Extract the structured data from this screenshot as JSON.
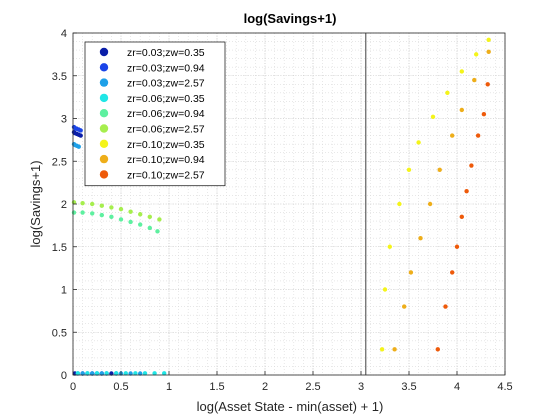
{
  "chart_data": {
    "type": "scatter",
    "title": "log(Savings+1)",
    "xlabel": "log(Asset State - min(asset) + 1)",
    "ylabel": "log(Savings+1)",
    "xlim": [
      0,
      4.5
    ],
    "ylim": [
      0,
      4
    ],
    "xticks": [
      "0",
      "0.5",
      "1",
      "1.5",
      "2",
      "2.5",
      "3",
      "3.5",
      "4",
      "4.5"
    ],
    "yticks": [
      "0",
      "0.5",
      "1",
      "1.5",
      "2",
      "2.5",
      "3",
      "3.5",
      "4"
    ],
    "grid": "minor-dotted",
    "legend_position": "top-left",
    "vertical_line_x": 3.05,
    "series": [
      {
        "name": "zr=0.03;zw=0.35",
        "color": "#0a1ea8",
        "points": [
          [
            0,
            2.84
          ],
          [
            0.02,
            2.83
          ],
          [
            0.04,
            2.82
          ],
          [
            0.06,
            2.81
          ],
          [
            0.08,
            2.8
          ],
          [
            0.02,
            0.01
          ],
          [
            0.1,
            0.01
          ],
          [
            0.2,
            0.01
          ],
          [
            0.3,
            0.01
          ],
          [
            0.4,
            0.01
          ]
        ]
      },
      {
        "name": "zr=0.03;zw=0.94",
        "color": "#1a44e8",
        "points": [
          [
            0,
            2.9
          ],
          [
            0.02,
            2.89
          ],
          [
            0.04,
            2.88
          ],
          [
            0.06,
            2.87
          ],
          [
            0.08,
            2.86
          ],
          [
            0.05,
            0.01
          ],
          [
            0.15,
            0.01
          ],
          [
            0.25,
            0.01
          ],
          [
            0.35,
            0.01
          ],
          [
            0.45,
            0.01
          ]
        ]
      },
      {
        "name": "zr=0.03;zw=2.57",
        "color": "#1ea0e8",
        "points": [
          [
            0,
            2.7
          ],
          [
            0.02,
            2.69
          ],
          [
            0.04,
            2.68
          ],
          [
            0.06,
            2.67
          ],
          [
            0.1,
            0.01
          ],
          [
            0.2,
            0.01
          ],
          [
            0.3,
            0.01
          ],
          [
            0.5,
            0.01
          ],
          [
            0.6,
            0.01
          ],
          [
            0.7,
            0.01
          ]
        ]
      },
      {
        "name": "zr=0.06;zw=0.35",
        "color": "#20e6e6",
        "points": [
          [
            0.05,
            0.02
          ],
          [
            0.15,
            0.02
          ],
          [
            0.25,
            0.02
          ],
          [
            0.35,
            0.02
          ],
          [
            0.45,
            0.02
          ],
          [
            0.55,
            0.02
          ],
          [
            0.65,
            0.02
          ],
          [
            0.75,
            0.02
          ],
          [
            0.85,
            0.02
          ],
          [
            0.95,
            0.02
          ]
        ]
      },
      {
        "name": "zr=0.06;zw=0.94",
        "color": "#5ef0a0",
        "points": [
          [
            0,
            1.9
          ],
          [
            0.1,
            1.9
          ],
          [
            0.2,
            1.89
          ],
          [
            0.3,
            1.87
          ],
          [
            0.4,
            1.85
          ],
          [
            0.5,
            1.82
          ],
          [
            0.6,
            1.79
          ],
          [
            0.7,
            1.76
          ],
          [
            0.8,
            1.72
          ],
          [
            0.88,
            1.68
          ]
        ]
      },
      {
        "name": "zr=0.06;zw=2.57",
        "color": "#a6ee4e",
        "points": [
          [
            0,
            2.02
          ],
          [
            0.1,
            2.01
          ],
          [
            0.2,
            2.0
          ],
          [
            0.3,
            1.98
          ],
          [
            0.4,
            1.96
          ],
          [
            0.5,
            1.94
          ],
          [
            0.6,
            1.91
          ],
          [
            0.7,
            1.88
          ],
          [
            0.8,
            1.85
          ],
          [
            0.9,
            1.82
          ]
        ]
      },
      {
        "name": "zr=0.10;zw=0.35",
        "color": "#f4f41a",
        "points": [
          [
            3.22,
            0.3
          ],
          [
            3.25,
            1.0
          ],
          [
            3.3,
            1.5
          ],
          [
            3.4,
            2.0
          ],
          [
            3.5,
            2.4
          ],
          [
            3.6,
            2.72
          ],
          [
            3.75,
            3.02
          ],
          [
            3.9,
            3.3
          ],
          [
            4.05,
            3.55
          ],
          [
            4.2,
            3.75
          ],
          [
            4.33,
            3.92
          ]
        ]
      },
      {
        "name": "zr=0.10;zw=0.94",
        "color": "#eeae1a",
        "points": [
          [
            3.35,
            0.3
          ],
          [
            3.45,
            0.8
          ],
          [
            3.52,
            1.2
          ],
          [
            3.62,
            1.6
          ],
          [
            3.72,
            2.0
          ],
          [
            3.82,
            2.4
          ],
          [
            3.95,
            2.8
          ],
          [
            4.05,
            3.1
          ],
          [
            4.18,
            3.45
          ],
          [
            4.33,
            3.78
          ]
        ]
      },
      {
        "name": "zr=0.10;zw=2.57",
        "color": "#ee5a0a",
        "points": [
          [
            3.8,
            0.3
          ],
          [
            3.88,
            0.8
          ],
          [
            3.95,
            1.2
          ],
          [
            4.0,
            1.5
          ],
          [
            4.05,
            1.85
          ],
          [
            4.1,
            2.15
          ],
          [
            4.15,
            2.45
          ],
          [
            4.22,
            2.8
          ],
          [
            4.28,
            3.05
          ],
          [
            4.32,
            3.4
          ]
        ]
      }
    ]
  }
}
